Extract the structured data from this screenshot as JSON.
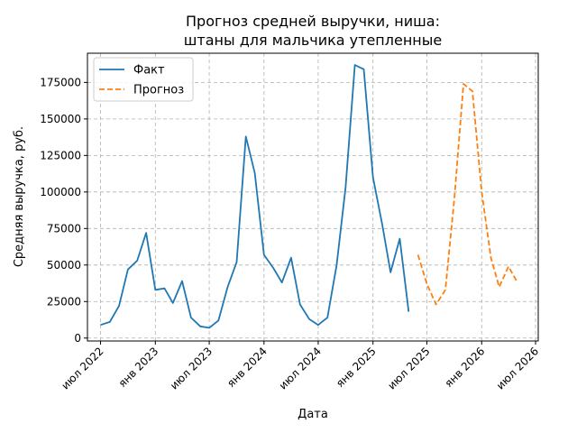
{
  "chart_data": {
    "type": "line",
    "title_lines": [
      "Прогноз средней выручки, ниша:",
      "штаны для мальчика утепленные"
    ],
    "xlabel": "Дата",
    "ylabel": "Средняя выручка, руб.",
    "x_ticks": [
      {
        "date": "2022-07-01",
        "label": "июл 2022"
      },
      {
        "date": "2023-01-01",
        "label": "янв 2023"
      },
      {
        "date": "2023-07-01",
        "label": "июл 2023"
      },
      {
        "date": "2024-01-01",
        "label": "янв 2024"
      },
      {
        "date": "2024-07-01",
        "label": "июл 2024"
      },
      {
        "date": "2025-01-01",
        "label": "янв 2025"
      },
      {
        "date": "2025-07-01",
        "label": "июл 2025"
      },
      {
        "date": "2026-01-01",
        "label": "янв 2026"
      },
      {
        "date": "2026-07-01",
        "label": "июл 2026"
      }
    ],
    "y_ticks": [
      0,
      25000,
      50000,
      75000,
      100000,
      125000,
      150000,
      175000
    ],
    "ylim": [
      -2000,
      195000
    ],
    "xlim": [
      "2022-05-18",
      "2026-07-10"
    ],
    "grid": true,
    "legend_position": "top-left",
    "series": [
      {
        "name": "Факт",
        "color": "#1f77b4",
        "style": "solid",
        "x": [
          "2022-07-01",
          "2022-08-01",
          "2022-09-01",
          "2022-10-01",
          "2022-11-01",
          "2022-12-01",
          "2023-01-01",
          "2023-02-01",
          "2023-03-01",
          "2023-04-01",
          "2023-05-01",
          "2023-06-01",
          "2023-07-01",
          "2023-08-01",
          "2023-09-01",
          "2023-10-01",
          "2023-11-01",
          "2023-12-01",
          "2024-01-01",
          "2024-02-01",
          "2024-03-01",
          "2024-04-01",
          "2024-05-01",
          "2024-06-01",
          "2024-07-01",
          "2024-08-01",
          "2024-09-01",
          "2024-10-01",
          "2024-11-01",
          "2024-12-01",
          "2025-01-01",
          "2025-02-01",
          "2025-03-01",
          "2025-04-01",
          "2025-05-01"
        ],
        "y": [
          9000,
          11000,
          22000,
          47000,
          53000,
          72000,
          33000,
          34000,
          24000,
          39000,
          14000,
          8000,
          7000,
          12000,
          35000,
          52000,
          138000,
          113000,
          57000,
          48000,
          38000,
          55000,
          23000,
          13000,
          9000,
          14000,
          50000,
          103000,
          187000,
          184000,
          110000,
          78000,
          45000,
          68000,
          18000
        ]
      },
      {
        "name": "Прогноз",
        "color": "#ff7f0e",
        "style": "dashed",
        "x": [
          "2025-06-01",
          "2025-07-01",
          "2025-08-01",
          "2025-09-01",
          "2025-10-01",
          "2025-11-01",
          "2025-12-01",
          "2026-01-01",
          "2026-02-01",
          "2026-03-01",
          "2026-04-01",
          "2026-05-01"
        ],
        "y": [
          57000,
          37000,
          23000,
          33000,
          95000,
          174000,
          169000,
          100000,
          55000,
          35000,
          49000,
          38000
        ]
      }
    ]
  }
}
